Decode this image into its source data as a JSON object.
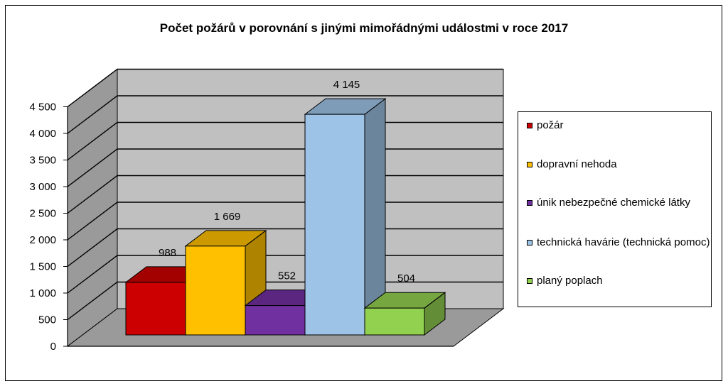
{
  "chart_data": {
    "type": "bar",
    "title": "Počet požárů v porovnání s jinými mimořádnými událostmi v roce 2017",
    "xlabel": "",
    "ylabel": "",
    "ylim": [
      0,
      4500
    ],
    "yticks": [
      0,
      500,
      1000,
      1500,
      2000,
      2500,
      3000,
      3500,
      4000,
      4500
    ],
    "ytick_labels": [
      "0",
      "500",
      "1 000",
      "1 500",
      "2 000",
      "2 500",
      "3 000",
      "3 500",
      "4 000",
      "4 500"
    ],
    "grid": true,
    "legend_position": "right",
    "bars": [
      {
        "name": "požár",
        "value": 988,
        "label": "988",
        "color": "#cc0000"
      },
      {
        "name": "dopravní nehoda",
        "value": 1669,
        "label": "1 669",
        "color": "#ffc000"
      },
      {
        "name": "únik nebezpečné chemické látky",
        "value": 552,
        "label": "552",
        "color": "#7030a0"
      },
      {
        "name": "technická havárie (technická pomoc)",
        "value": 4145,
        "label": "4 145",
        "color": "#9dc3e6"
      },
      {
        "name": "planý poplach",
        "value": 504,
        "label": "504",
        "color": "#92d050"
      }
    ],
    "legend": [
      {
        "name": "požár",
        "color": "#cc0000"
      },
      {
        "name": "dopravní nehoda",
        "color": "#ffc000"
      },
      {
        "name": "únik nebezpečné chemické látky",
        "color": "#7030a0"
      },
      {
        "name": "technická havárie (technická pomoc)",
        "color": "#9dc3e6"
      },
      {
        "name": "planý poplach",
        "color": "#92d050"
      }
    ]
  }
}
